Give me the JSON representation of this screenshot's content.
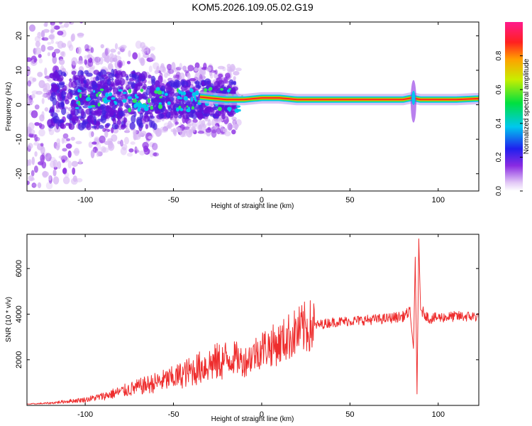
{
  "title": "KOM5.2026.109.05.02.G19",
  "chart_data": [
    {
      "type": "heatmap",
      "name": "spectrogram",
      "xlabel": "Height of straight line (km)",
      "ylabel": "Frequency (Hz)",
      "xlim": [
        -133,
        123
      ],
      "ylim": [
        -25,
        24
      ],
      "xticks": [
        -100,
        -50,
        0,
        50,
        100
      ],
      "yticks": [
        -20,
        -10,
        0,
        10,
        20
      ],
      "ridge": {
        "x": [
          -133,
          -100,
          -80,
          -60,
          -40,
          -20,
          -10,
          0,
          10,
          20,
          40,
          60,
          80,
          85,
          90,
          110,
          123
        ],
        "freq": [
          1.5,
          1.5,
          1.5,
          2.0,
          2.5,
          1.5,
          1.5,
          2.0,
          2.0,
          1.5,
          1.5,
          1.5,
          1.5,
          2.0,
          1.5,
          1.5,
          1.8
        ]
      },
      "colorbar": {
        "label": "Normalized spectral amplitude",
        "range": [
          0.0,
          1.0
        ],
        "ticks": [
          0.0,
          0.2,
          0.4,
          0.6,
          0.8
        ]
      }
    },
    {
      "type": "line",
      "name": "snr",
      "xlabel": "Height of straight line (km)",
      "ylabel": "SNR (10 * v/v)",
      "xlim": [
        -133,
        123
      ],
      "ylim": [
        0,
        7500
      ],
      "xticks": [
        -100,
        -50,
        0,
        50,
        100
      ],
      "yticks": [
        2000,
        4000,
        6000
      ],
      "color": "#ee2d2d",
      "series": [
        {
          "name": "SNR",
          "x": [
            -133,
            -120,
            -110,
            -100,
            -90,
            -80,
            -70,
            -60,
            -50,
            -40,
            -30,
            -20,
            -15,
            -10,
            -5,
            0,
            5,
            10,
            15,
            20,
            25,
            30,
            40,
            50,
            60,
            70,
            80,
            84,
            86,
            87,
            88,
            89,
            90,
            95,
            100,
            110,
            123
          ],
          "y": [
            50,
            100,
            180,
            250,
            400,
            600,
            800,
            1000,
            1200,
            1500,
            1800,
            2000,
            2100,
            1900,
            2200,
            2500,
            2600,
            2700,
            3000,
            3200,
            3400,
            3500,
            3650,
            3700,
            3750,
            3800,
            3900,
            4100,
            2500,
            6500,
            500,
            7300,
            4200,
            3800,
            3850,
            3900,
            3900
          ]
        }
      ]
    }
  ]
}
